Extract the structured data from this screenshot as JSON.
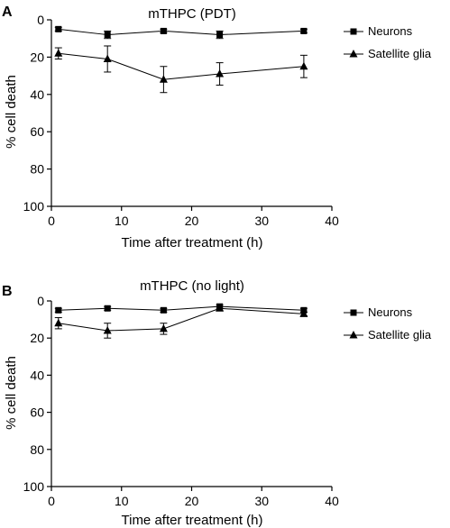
{
  "chart_data": [
    {
      "panel_label": "A",
      "type": "line",
      "title": "mTHPC (PDT)",
      "xlabel": "Time after treatment (h)",
      "ylabel": "% cell death",
      "xlim": [
        0,
        40
      ],
      "ylim": [
        0,
        100
      ],
      "y_inverted": true,
      "x_ticks": [
        0,
        10,
        20,
        30,
        40
      ],
      "y_ticks": [
        0,
        20,
        40,
        60,
        80,
        100
      ],
      "grid": false,
      "legend_position": "right",
      "series": [
        {
          "name": "Neurons",
          "marker": "square",
          "x": [
            1,
            8,
            16,
            24,
            36
          ],
          "y": [
            5,
            8,
            6,
            8,
            6
          ],
          "err": [
            1,
            2,
            1,
            2,
            1
          ]
        },
        {
          "name": "Satellite glia",
          "marker": "triangle",
          "x": [
            1,
            8,
            16,
            24,
            36
          ],
          "y": [
            18,
            21,
            32,
            29,
            25
          ],
          "err": [
            3,
            7,
            7,
            6,
            6
          ]
        }
      ]
    },
    {
      "panel_label": "B",
      "type": "line",
      "title": "mTHPC (no light)",
      "xlabel": "Time after treatment (h)",
      "ylabel": "% cell death",
      "xlim": [
        0,
        40
      ],
      "ylim": [
        0,
        100
      ],
      "y_inverted": true,
      "x_ticks": [
        0,
        10,
        20,
        30,
        40
      ],
      "y_ticks": [
        0,
        20,
        40,
        60,
        80,
        100
      ],
      "grid": false,
      "legend_position": "right",
      "series": [
        {
          "name": "Neurons",
          "marker": "square",
          "x": [
            1,
            8,
            16,
            24,
            36
          ],
          "y": [
            5,
            4,
            5,
            3,
            5
          ],
          "err": [
            1,
            1,
            1,
            1,
            1
          ]
        },
        {
          "name": "Satellite glia",
          "marker": "triangle",
          "x": [
            1,
            8,
            16,
            24,
            36
          ],
          "y": [
            12,
            16,
            15,
            4,
            7
          ],
          "err": [
            3,
            4,
            3,
            1,
            1
          ]
        }
      ]
    }
  ]
}
